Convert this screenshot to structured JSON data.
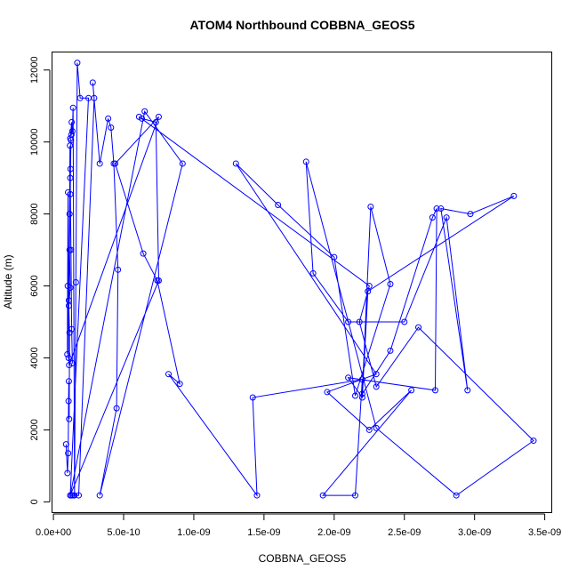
{
  "chart_data": {
    "type": "line",
    "title": "ATOM4 Northbound COBBNA_GEOS5",
    "xlabel": "COBBNA_GEOS5",
    "ylabel": "Altitude (m)",
    "xlim": [
      -1e-11,
      3.55e-09
    ],
    "ylim": [
      -300,
      12500
    ],
    "x_ticks": [
      0,
      5e-10,
      1e-09,
      1.5e-09,
      2e-09,
      2.5e-09,
      3e-09,
      3.5e-09
    ],
    "x_tick_labels": [
      "0.0e+00",
      "5.0e-10",
      "1.0e-09",
      "1.5e-09",
      "2.0e-09",
      "2.5e-09",
      "3.0e-09",
      "3.5e-09"
    ],
    "y_ticks": [
      0,
      2000,
      4000,
      6000,
      8000,
      10000,
      12000
    ],
    "y_tick_labels": [
      "0",
      "2000",
      "4000",
      "6000",
      "8000",
      "10000",
      "12000"
    ],
    "grid": false,
    "marker": "open-circle",
    "color": "#0000ff",
    "series": [
      {
        "x": [
          9e-11,
          1e-10,
          1.05e-10,
          1.08e-10,
          1.1e-10,
          1.12e-10,
          1.15e-10,
          1.1e-10,
          1.2e-10,
          1.15e-10,
          1.2e-10,
          1.22e-10,
          1.25e-10,
          1.2e-10,
          1.3e-10,
          1.28e-10,
          1.35e-10,
          1.4e-10,
          1.5e-10,
          1.6e-10,
          1.7e-10,
          1.9e-10,
          2.5e-10,
          1.2e-10,
          1.3e-10,
          1.4e-10,
          1.8e-10,
          2.9e-10,
          2.8e-10,
          3.3e-10,
          3.9e-10,
          4.1e-10,
          4.3e-10,
          4.6e-10,
          4.5e-10,
          3.3e-10,
          9.2e-10,
          6.5e-10,
          1.2e-10,
          7.5e-10,
          7.3e-10,
          6.3e-10,
          6.1e-10,
          2.25e-09,
          2.18e-09,
          2.3e-09,
          2.6e-09,
          3.42e-09,
          2.87e-09,
          2.3e-09,
          1.8e-09,
          1.85e-09,
          2.1e-09,
          2.5e-09,
          2.8e-09,
          2.95e-09,
          2.76e-09,
          2.97e-09,
          3.28e-09,
          2.24e-09,
          2.2e-09,
          2.1e-09,
          2.72e-09,
          2.73e-09,
          2.7e-09,
          2.4e-09,
          2.2e-09,
          2.26e-09,
          2.4e-09,
          2.15e-09,
          2e-09,
          1.6e-09,
          1.3e-09,
          2.3e-09,
          1.95e-09,
          2.25e-09,
          2.55e-09,
          1.92e-09,
          2.15e-09,
          2.2e-09,
          1.42e-09,
          1.45e-09,
          8.2e-10,
          9e-10,
          7.4e-10,
          6.4e-10,
          4.4e-10,
          7.5e-10,
          1.12e-10,
          1.08e-10,
          1.04e-10,
          9.9e-11,
          1.02e-10,
          1.1e-10,
          1.15e-10,
          1.18e-10,
          1.2e-10,
          1.25e-10,
          1.3e-10,
          1.35e-10
        ],
        "y": [
          1600,
          800,
          1350,
          2800,
          3350,
          2300,
          4700,
          5450,
          5950,
          7000,
          8550,
          9250,
          10050,
          10100,
          10550,
          10200,
          10300,
          10950,
          180,
          6100,
          12200,
          11220,
          11220,
          180,
          180,
          180,
          180,
          11220,
          11650,
          9400,
          10650,
          10400,
          9400,
          6450,
          2600,
          180,
          9400,
          10850,
          180,
          6150,
          10550,
          10650,
          10700,
          6000,
          5000,
          3200,
          4850,
          1700,
          180,
          2050,
          9450,
          6350,
          5000,
          5000,
          7900,
          3100,
          8150,
          8000,
          8500,
          5850,
          2900,
          3450,
          3100,
          8150,
          7900,
          4200,
          3000,
          8200,
          6050,
          2950,
          6800,
          8250,
          9400,
          3550,
          3050,
          2000,
          3100,
          180,
          180,
          3400,
          2900,
          180,
          3550,
          3280,
          6150,
          6900,
          9400,
          10700,
          3800,
          4000,
          8600,
          4100,
          6000,
          5600,
          8000,
          9900,
          9000,
          7000,
          4800,
          3850
        ]
      }
    ]
  }
}
